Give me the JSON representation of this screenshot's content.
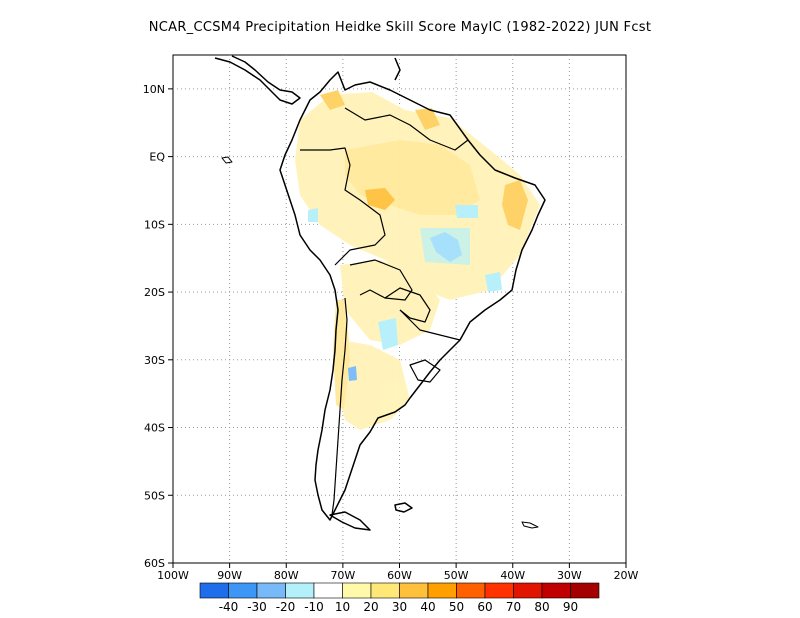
{
  "title": "NCAR_CCSM4  Precipitation Heidke Skill Score MayIC (1982-2022) JUN Fcst",
  "map": {
    "lat_ticks": [
      "10N",
      "EQ",
      "10S",
      "20S",
      "30S",
      "40S",
      "50S",
      "60S"
    ],
    "lon_ticks": [
      "100W",
      "90W",
      "80W",
      "70W",
      "60W",
      "50W",
      "40W",
      "30W",
      "20W"
    ],
    "lon_range": [
      -100,
      -20
    ],
    "lat_range": [
      -60,
      15
    ],
    "grid": "dotted"
  },
  "colorbar": {
    "labels": [
      "-40",
      "-30",
      "-20",
      "-10",
      "10",
      "20",
      "30",
      "40",
      "50",
      "60",
      "70",
      "80",
      "90"
    ],
    "colors": [
      "#1e6eeb",
      "#3c96f5",
      "#78b9fa",
      "#b4f0fa",
      "#ffffff",
      "#fffaaa",
      "#ffe878",
      "#ffc03c",
      "#ffa000",
      "#ff6000",
      "#ff3200",
      "#e11400",
      "#c00000",
      "#a50000"
    ]
  }
}
